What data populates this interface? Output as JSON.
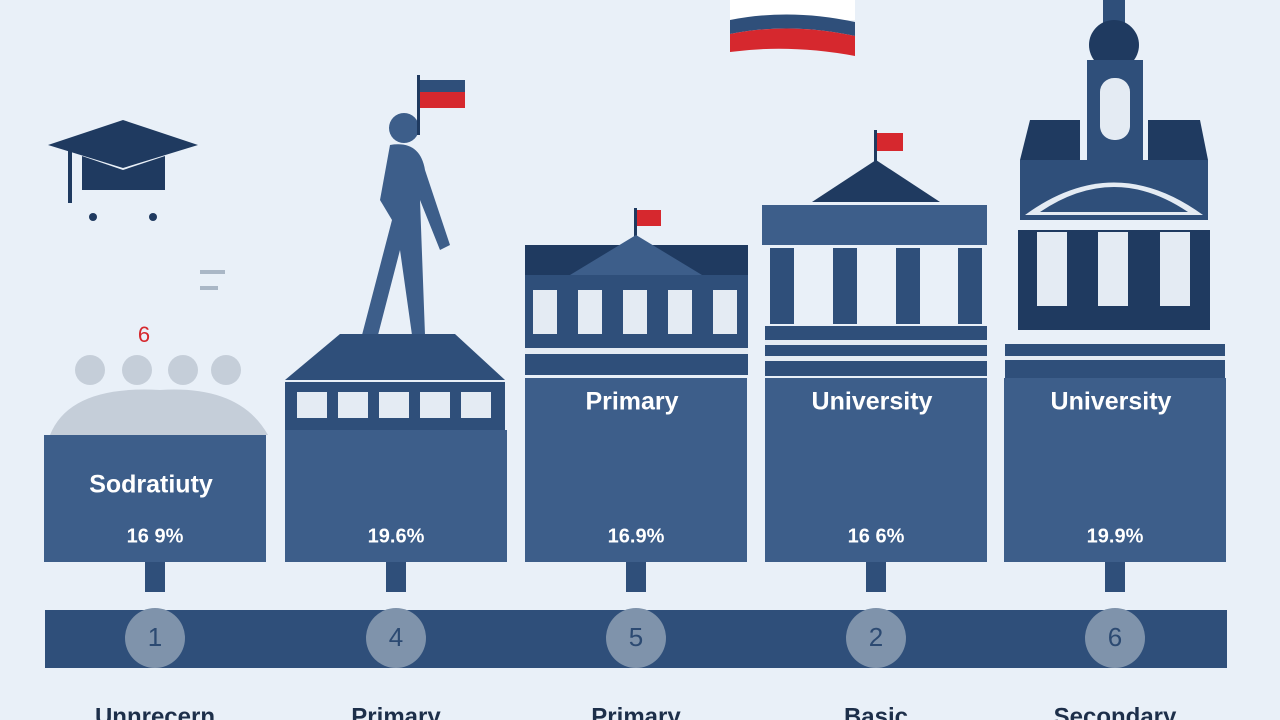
{
  "marker": "6",
  "columns": [
    {
      "label": "Sodratiuty",
      "percent": "16 9%",
      "badge": "1",
      "caption": "Unnrecern"
    },
    {
      "percent": "19.6%",
      "badge": "4",
      "caption": "Primary"
    },
    {
      "label": "Primary",
      "percent": "16.9%",
      "badge": "5",
      "caption": "Primary"
    },
    {
      "label": "University",
      "percent": "16 6%",
      "badge": "2",
      "caption": "Basic"
    },
    {
      "label": "University",
      "percent": "19.9%",
      "badge": "6",
      "caption": "Secondary"
    }
  ]
}
